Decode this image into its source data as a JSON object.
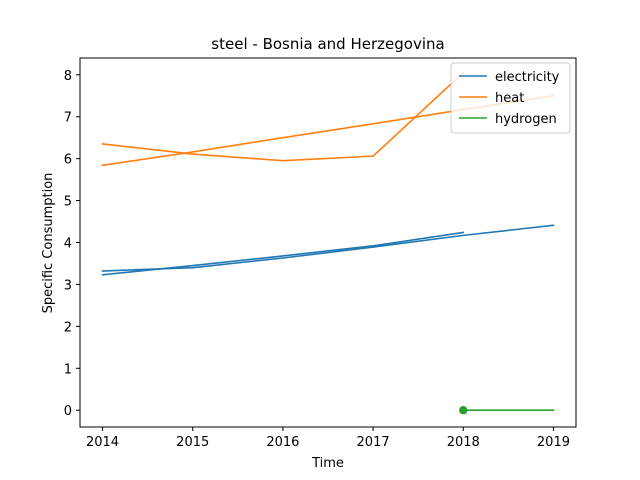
{
  "chart_data": {
    "type": "line",
    "title": "steel - Bosnia and Herzegovina",
    "xlabel": "Time",
    "ylabel": "Specific Consumption",
    "xlim": [
      2013.75,
      2019.25
    ],
    "ylim": [
      -0.4,
      8.4
    ],
    "xticks": [
      2014,
      2015,
      2016,
      2017,
      2018,
      2019
    ],
    "yticks": [
      0,
      1,
      2,
      3,
      4,
      5,
      6,
      7,
      8
    ],
    "legend_position": "top-right",
    "grid": false,
    "series": [
      {
        "name": "electricity",
        "color": "#1f77b4",
        "segments": [
          {
            "x": [
              2014,
              2015,
              2016,
              2017,
              2018
            ],
            "y": [
              3.23,
              3.45,
              3.68,
              3.92,
              4.24
            ]
          },
          {
            "x": [
              2014,
              2015,
              2016,
              2017,
              2018,
              2019
            ],
            "y": [
              3.32,
              3.4,
              3.63,
              3.89,
              4.17,
              4.41
            ]
          }
        ]
      },
      {
        "name": "heat",
        "color": "#ff7f0e",
        "segments": [
          {
            "x": [
              2014,
              2015,
              2016,
              2017,
              2018
            ],
            "y": [
              5.84,
              6.16,
              6.5,
              6.83,
              7.17
            ]
          },
          {
            "x": [
              2014,
              2015,
              2016,
              2017,
              2018
            ],
            "y": [
              6.35,
              6.11,
              5.95,
              6.06,
              8.05
            ]
          },
          {
            "x": [
              2018,
              2019
            ],
            "y": [
              7.17,
              7.5
            ]
          }
        ]
      },
      {
        "name": "hydrogen",
        "color": "#2ca02c",
        "segments": [
          {
            "x": [
              2018,
              2019
            ],
            "y": [
              0.0,
              0.0
            ]
          }
        ],
        "markers": [
          {
            "x": 2018,
            "y": 0.0
          }
        ]
      }
    ]
  }
}
